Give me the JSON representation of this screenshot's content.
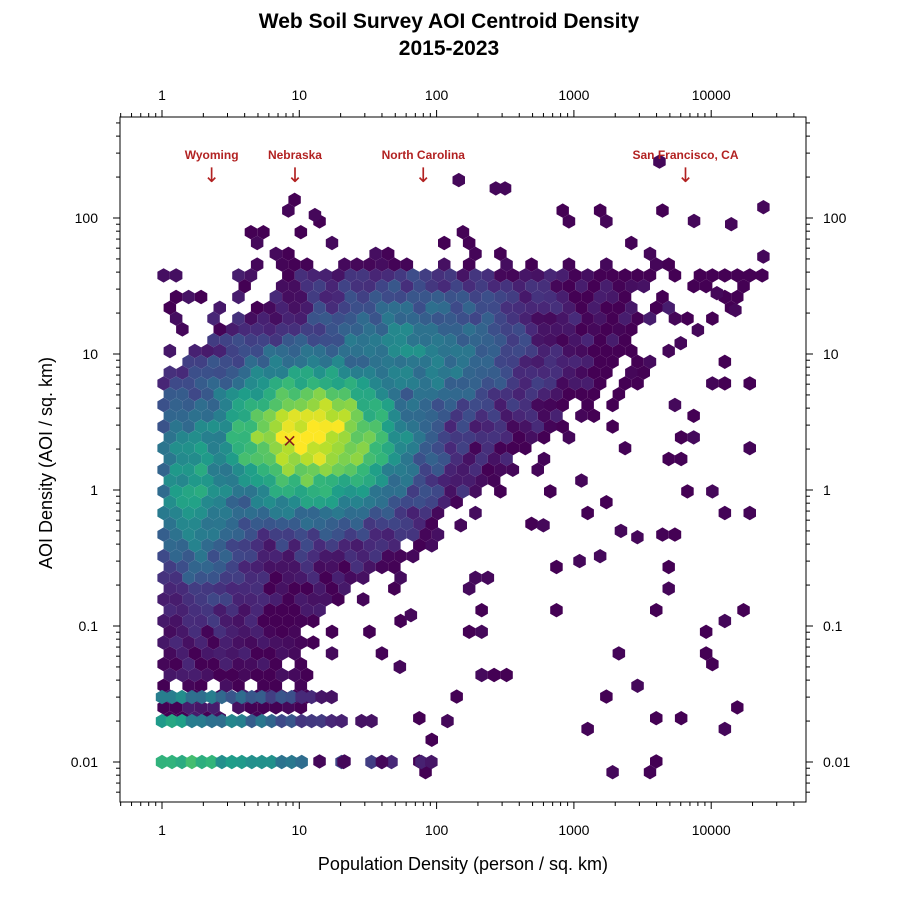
{
  "chart_data": {
    "type": "heatmap",
    "subtype": "hexbin",
    "title": [
      "Web Soil Survey AOI Centroid Density",
      "2015-2023"
    ],
    "xlabel": "Population Density (person / sq. km)",
    "ylabel": "AOI Density (AOI / sq. km)",
    "x_scale": "log10",
    "y_scale": "log10",
    "xlim": [
      0.5,
      45000
    ],
    "ylim": [
      0.005,
      500
    ],
    "x_ticks": [
      1,
      10,
      100,
      1000,
      10000
    ],
    "x_tick_labels": [
      "1",
      "10",
      "100",
      "1000",
      "10000"
    ],
    "y_ticks": [
      0.01,
      0.1,
      1,
      10,
      100
    ],
    "y_tick_labels": [
      "0.01",
      "0.1",
      "1",
      "10",
      "100"
    ],
    "tick_sides": "all four sides",
    "grid": false,
    "legend": "none",
    "colormap": "viridis (dark purple = low count, yellow = high count)",
    "colors": {
      "low": "#440154",
      "mid_low": "#3b528b",
      "mid": "#21918c",
      "mid_high": "#5ec962",
      "high": "#fde725",
      "annotation": "#b22222",
      "median_marker": "#8b1a1a"
    },
    "density_core": {
      "peak_x": 12,
      "peak_y": 2.5,
      "description": "dense yellow core around population 5-20 and AOI 1-4"
    },
    "median_marker": {
      "x": 8.5,
      "y": 2.3,
      "symbol": "x"
    },
    "annotations": [
      {
        "label": "Wyoming",
        "x": 2.3
      },
      {
        "label": "Nebraska",
        "x": 9.3
      },
      {
        "label": "North Carolina",
        "x": 80
      },
      {
        "label": "San Francisco, CA",
        "x": 6500
      }
    ],
    "annotation_arrow": "↓",
    "outliers": [
      [
        4200,
        260
      ],
      [
        145,
        190
      ],
      [
        270,
        165
      ],
      [
        315,
        165
      ],
      [
        24000,
        120
      ],
      [
        24000,
        52
      ],
      [
        14000,
        90
      ],
      [
        7500,
        95
      ],
      [
        13,
        105
      ],
      [
        15000,
        21
      ],
      [
        11000,
        28
      ],
      [
        8000,
        15
      ],
      [
        6000,
        12
      ],
      [
        1100,
        0.3
      ],
      [
        2200,
        0.5
      ],
      [
        2900,
        0.45
      ],
      [
        600,
        0.55
      ],
      [
        120,
        0.02
      ],
      [
        40,
        0.01
      ],
      [
        21,
        0.01
      ],
      [
        54,
        0.05
      ],
      [
        150,
        0.55
      ],
      [
        65,
        0.12
      ]
    ]
  }
}
